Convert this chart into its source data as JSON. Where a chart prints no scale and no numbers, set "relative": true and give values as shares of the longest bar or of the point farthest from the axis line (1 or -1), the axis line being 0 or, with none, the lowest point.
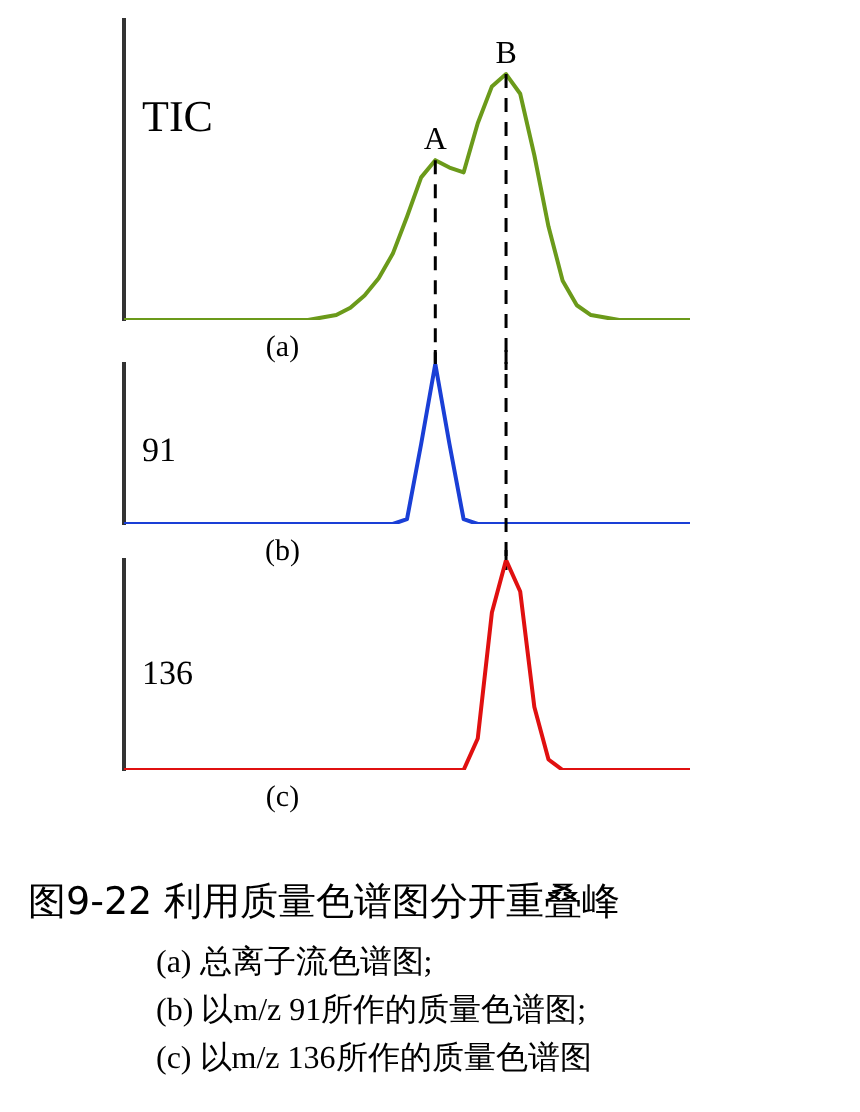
{
  "chart_data": [
    {
      "type": "line",
      "ylabel": "TIC",
      "xlabel": "(a)",
      "relative": true,
      "legend": false,
      "categories": [
        null,
        null,
        null,
        null,
        null,
        null,
        null,
        null,
        null,
        null,
        null,
        null,
        null,
        null,
        null,
        null,
        null,
        null,
        null,
        null,
        null,
        null,
        null,
        null,
        null,
        null,
        null,
        null,
        null,
        null,
        null,
        null,
        null,
        null,
        null,
        null,
        null,
        null,
        null,
        null,
        null
      ],
      "series": [
        {
          "color": "#6b9a1a",
          "values": [
            0,
            0,
            0,
            0,
            0,
            0,
            0,
            0,
            0,
            0,
            0,
            0,
            0,
            0,
            0.01,
            0.02,
            0.05,
            0.1,
            0.17,
            0.27,
            0.42,
            0.58,
            0.65,
            0.62,
            0.6,
            0.8,
            0.95,
            1,
            0.92,
            0.67,
            0.38,
            0.16,
            0.06,
            0.02,
            0.01,
            0,
            0,
            0,
            0,
            0,
            0
          ]
        }
      ],
      "annotations": [
        "A",
        "B"
      ]
    },
    {
      "type": "line",
      "ylabel": "91",
      "xlabel": "(b)",
      "relative": true,
      "legend": false,
      "categories": [
        null,
        null,
        null,
        null,
        null,
        null,
        null,
        null,
        null,
        null,
        null,
        null,
        null,
        null,
        null,
        null,
        null,
        null,
        null,
        null,
        null,
        null,
        null,
        null,
        null,
        null,
        null,
        null,
        null,
        null,
        null,
        null,
        null,
        null,
        null,
        null,
        null,
        null,
        null,
        null,
        null
      ],
      "series": [
        {
          "color": "#1a3fd6",
          "values": [
            0,
            0,
            0,
            0,
            0,
            0,
            0,
            0,
            0,
            0,
            0,
            0,
            0,
            0,
            0,
            0,
            0,
            0,
            0,
            0,
            0.03,
            0.5,
            1,
            0.5,
            0.03,
            0,
            0,
            0,
            0,
            0,
            0,
            0,
            0,
            0,
            0,
            0,
            0,
            0,
            0,
            0,
            0
          ]
        }
      ]
    },
    {
      "type": "line",
      "title": "图9-22 利用质量色谱图分开重叠峰",
      "ylabel": "136",
      "xlabel": "(c)",
      "relative": true,
      "legend": false,
      "categories": [
        null,
        null,
        null,
        null,
        null,
        null,
        null,
        null,
        null,
        null,
        null,
        null,
        null,
        null,
        null,
        null,
        null,
        null,
        null,
        null,
        null,
        null,
        null,
        null,
        null,
        null,
        null,
        null,
        null,
        null,
        null,
        null,
        null,
        null,
        null,
        null,
        null,
        null,
        null,
        null,
        null
      ],
      "series": [
        {
          "color": "#e01010",
          "values": [
            0,
            0,
            0,
            0,
            0,
            0,
            0,
            0,
            0,
            0,
            0,
            0,
            0,
            0,
            0,
            0,
            0,
            0,
            0,
            0,
            0,
            0,
            0,
            0,
            0,
            0.15,
            0.75,
            1,
            0.85,
            0.3,
            0.05,
            0,
            0,
            0,
            0,
            0,
            0,
            0,
            0,
            0,
            0
          ]
        }
      ],
      "annotations": [
        "(a) 总离子流色谱图;",
        "(b) 以m/z 91所作的质量色谱图;",
        "(c) 以m/z 136所作的质量色谱图"
      ]
    }
  ]
}
